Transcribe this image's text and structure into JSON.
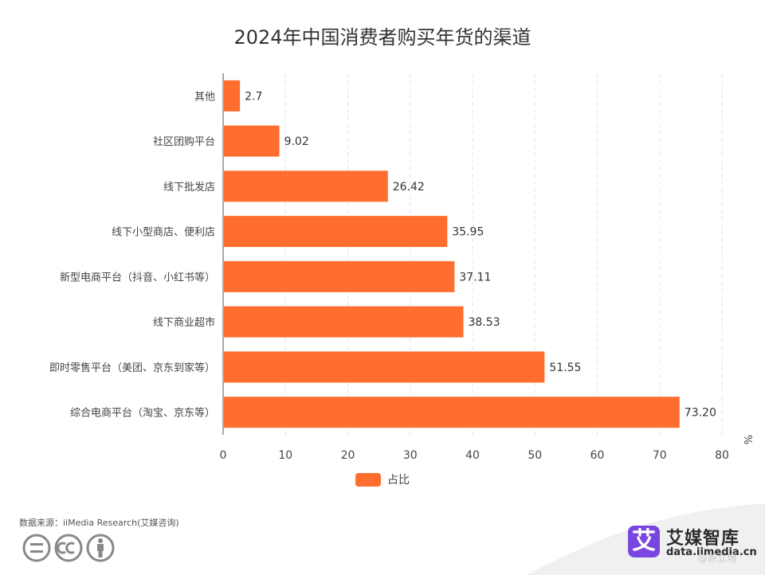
{
  "chart_data": {
    "type": "bar",
    "orientation": "horizontal",
    "title": "2024年中国消费者购买年货的渠道",
    "categories": [
      "其他",
      "社区团购平台",
      "线下批发店",
      "线下小型商店、便利店",
      "新型电商平台（抖音、小红书等）",
      "线下商业超市",
      "即时零售平台（美团、京东到家等）",
      "综合电商平台（淘宝、京东等）"
    ],
    "series": [
      {
        "name": "占比",
        "values": [
          2.7,
          9.02,
          26.42,
          35.95,
          37.11,
          38.53,
          51.55,
          73.2
        ],
        "labels": [
          "2.7",
          "9.02",
          "26.42",
          "35.95",
          "37.11",
          "38.53",
          "51.55",
          "73.20"
        ]
      }
    ],
    "xlim": [
      0,
      80
    ],
    "xticks": [
      0,
      10,
      20,
      30,
      40,
      50,
      60,
      70,
      80
    ],
    "unit": "%",
    "legend_position": "bottom-center",
    "grid": "vertical-dashed",
    "bar_color": "#ff6e2f"
  },
  "footer": {
    "source": "数据来源：iiMedia Research(艾媒咨询)"
  },
  "brand": {
    "logo_glyph": "艾",
    "name": "艾媒智库",
    "url": "data.iimedia.cn"
  },
  "watermark": "@新立场"
}
